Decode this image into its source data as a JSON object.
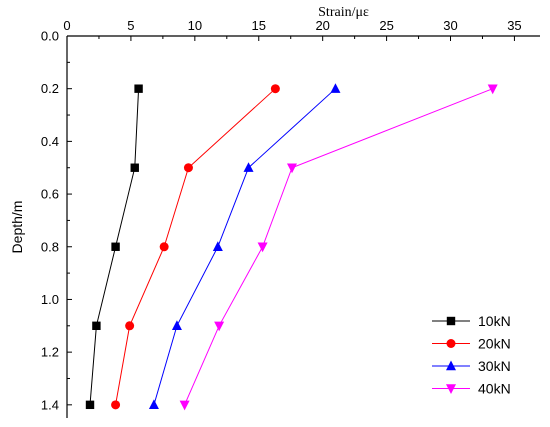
{
  "chart_data": {
    "type": "line",
    "title": "",
    "xlabel": "Strain/με",
    "ylabel": "Depth/m",
    "x_axis_position": "top",
    "y_axis_inverted": true,
    "xlim": [
      0,
      37
    ],
    "ylim": [
      0.0,
      1.45
    ],
    "xticks": [
      0,
      5,
      10,
      15,
      20,
      25,
      30,
      35
    ],
    "yticks": [
      0.0,
      0.2,
      0.4,
      0.6,
      0.8,
      1.0,
      1.2,
      1.4
    ],
    "ytick_labels": [
      "0.0",
      "0.2",
      "0.4",
      "0.6",
      "0.8",
      "1.0",
      "1.2",
      "1.4"
    ],
    "grid": false,
    "legend_position": "bottom-right",
    "series": [
      {
        "name": "10kN",
        "color": "#000000",
        "marker": "square",
        "points": [
          [
            5.6,
            0.2
          ],
          [
            5.3,
            0.5
          ],
          [
            3.8,
            0.8
          ],
          [
            2.3,
            1.1
          ],
          [
            1.8,
            1.4
          ]
        ]
      },
      {
        "name": "20kN",
        "color": "#ff0000",
        "marker": "circle",
        "points": [
          [
            16.3,
            0.2
          ],
          [
            9.5,
            0.5
          ],
          [
            7.6,
            0.8
          ],
          [
            4.9,
            1.1
          ],
          [
            3.8,
            1.4
          ]
        ]
      },
      {
        "name": "30kN",
        "color": "#0000ff",
        "marker": "triangle-up",
        "points": [
          [
            21.0,
            0.2
          ],
          [
            14.2,
            0.5
          ],
          [
            11.8,
            0.8
          ],
          [
            8.6,
            1.1
          ],
          [
            6.8,
            1.4
          ]
        ]
      },
      {
        "name": "40kN",
        "color": "#ff00ff",
        "marker": "triangle-down",
        "points": [
          [
            33.3,
            0.2
          ],
          [
            17.6,
            0.5
          ],
          [
            15.3,
            0.8
          ],
          [
            11.9,
            1.1
          ],
          [
            9.2,
            1.4
          ]
        ]
      }
    ]
  }
}
